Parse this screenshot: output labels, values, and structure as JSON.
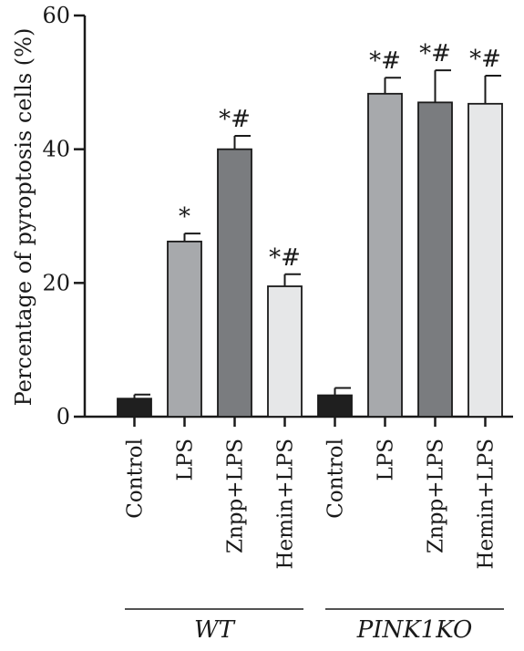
{
  "chart_data": {
    "type": "bar",
    "title": "",
    "ylabel": "Percentage of pyroptosis cells (%)",
    "ylim": [
      0,
      60
    ],
    "yticks": [
      0,
      20,
      40,
      60
    ],
    "grid": false,
    "groups": [
      {
        "name": "WT",
        "bars": [
          {
            "category": "Control",
            "value": 2.7,
            "error": 0.6,
            "annotation": "",
            "color": "#1f1f1f"
          },
          {
            "category": "LPS",
            "value": 26.2,
            "error": 1.2,
            "annotation": "*",
            "color": "#a7a9ac"
          },
          {
            "category": "Znpp+LPS",
            "value": 40.0,
            "error": 2.0,
            "annotation": "*#",
            "color": "#7a7c7f"
          },
          {
            "category": "Hemin+LPS",
            "value": 19.5,
            "error": 1.8,
            "annotation": "*#",
            "color": "#e6e7e8"
          }
        ]
      },
      {
        "name": "PINK1KO",
        "bars": [
          {
            "category": "Control",
            "value": 3.2,
            "error": 1.1,
            "annotation": "",
            "color": "#1f1f1f"
          },
          {
            "category": "LPS",
            "value": 48.3,
            "error": 2.4,
            "annotation": "*#",
            "color": "#a7a9ac"
          },
          {
            "category": "Znpp+LPS",
            "value": 47.0,
            "error": 4.8,
            "annotation": "*#",
            "color": "#7a7c7f"
          },
          {
            "category": "Hemin+LPS",
            "value": 46.8,
            "error": 4.2,
            "annotation": "*#",
            "color": "#e6e7e8"
          }
        ]
      }
    ]
  }
}
